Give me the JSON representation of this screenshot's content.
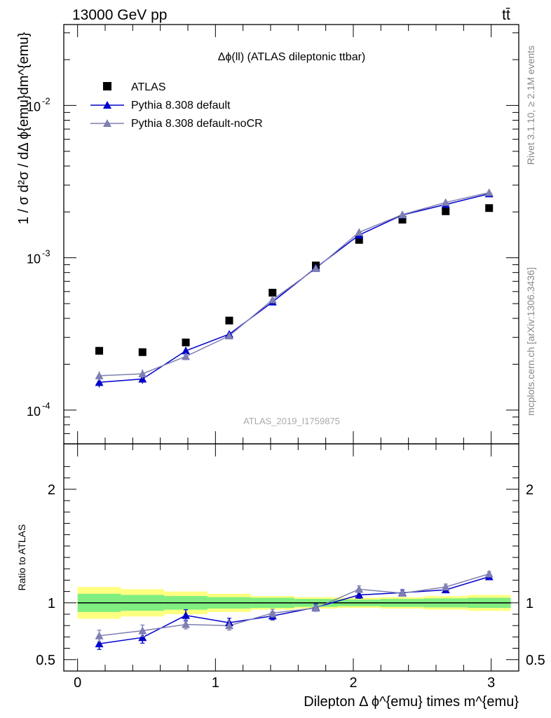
{
  "header": {
    "energy_label": "13000 GeV pp",
    "process_label": "tt̄"
  },
  "side_labels": {
    "rivet": "Rivet 3.1.10, ≥ 2.1M events",
    "source": "mcplots.cern.ch [arXiv:1306.3436]"
  },
  "colors": {
    "data": "#000000",
    "default": "#0000cc",
    "noCR": "#7f7fb2",
    "band_inner": "#80ee80",
    "band_outer": "#ffff80"
  },
  "chart_data": [
    {
      "type": "scatter",
      "title": "Δϕ(ll) (ATLAS dileptonic ttbar)",
      "analysis_label": "ATLAS_2019_I1759875",
      "ylabel": "1 / σ  d²σ / dΔ ϕ{emu}dm^{emu}",
      "yscale": "log",
      "ylim": [
        6e-05,
        0.034
      ],
      "xlim": [
        -0.1,
        3.2
      ],
      "y_tick_labels": [
        "10^-4",
        "10^-3",
        "10^-2"
      ],
      "legend_position": "top-left",
      "legend": [
        "ATLAS",
        "Pythia 8.308 default",
        "Pythia 8.308 default-noCR"
      ],
      "x": [
        0.157,
        0.471,
        0.785,
        1.1,
        1.414,
        1.728,
        2.042,
        2.356,
        2.67,
        2.985
      ],
      "series": [
        {
          "name": "ATLAS",
          "marker": "square",
          "values": [
            0.000245,
            0.00024,
            0.000278,
            0.000387,
            0.00059,
            0.00089,
            0.00131,
            0.00178,
            0.00202,
            0.00212
          ]
        },
        {
          "name": "Pythia 8.308 default",
          "marker": "triangle",
          "values": [
            0.000152,
            0.00016,
            0.000245,
            0.000315,
            0.000513,
            0.00086,
            0.00141,
            0.00191,
            0.00224,
            0.00263
          ],
          "err": [
            1.1e-05,
            1.1e-05,
            1.4e-05,
            1.6e-05,
            2e-05,
            2.5e-05,
            4e-05,
            5e-05,
            6e-05,
            7e-05
          ]
        },
        {
          "name": "Pythia 8.308 default-noCR",
          "marker": "triangle",
          "values": [
            0.000168,
            0.000173,
            0.000225,
            0.000307,
            0.00053,
            0.00085,
            0.00147,
            0.00192,
            0.00231,
            0.00268
          ],
          "err": [
            1.2e-05,
            1.2e-05,
            1.3e-05,
            1.6e-05,
            2e-05,
            2.5e-05,
            4e-05,
            5e-05,
            6e-05,
            7e-05
          ]
        }
      ]
    },
    {
      "type": "line",
      "xlabel": "Dilepton Δ ϕ^{emu} times m^{emu}",
      "ylabel": "Ratio to ATLAS",
      "ylim": [
        0.4,
        2.4
      ],
      "xlim": [
        -0.1,
        3.2
      ],
      "x_ticks": [
        0,
        1,
        2,
        3
      ],
      "y_ticks": [
        0.5,
        1,
        2
      ],
      "band_edges": [
        0.0,
        0.314,
        0.628,
        0.942,
        1.257,
        1.571,
        1.885,
        2.199,
        2.513,
        2.827,
        3.142
      ],
      "band_inner": [
        0.08,
        0.07,
        0.06,
        0.05,
        0.045,
        0.035,
        0.03,
        0.035,
        0.04,
        0.045
      ],
      "band_outer": [
        0.14,
        0.12,
        0.1,
        0.08,
        0.06,
        0.05,
        0.045,
        0.05,
        0.06,
        0.07
      ],
      "x": [
        0.157,
        0.471,
        0.785,
        1.1,
        1.414,
        1.728,
        2.042,
        2.356,
        2.67,
        2.985
      ],
      "series": [
        {
          "name": "Pythia 8.308 default",
          "values": [
            0.64,
            0.695,
            0.89,
            0.825,
            0.885,
            0.96,
            1.07,
            1.09,
            1.115,
            1.23
          ],
          "err": [
            0.05,
            0.05,
            0.05,
            0.04,
            0.035,
            0.03,
            0.03,
            0.025,
            0.025,
            0.02
          ]
        },
        {
          "name": "Pythia 8.308 default-noCR",
          "values": [
            0.71,
            0.755,
            0.81,
            0.8,
            0.91,
            0.955,
            1.12,
            1.085,
            1.14,
            1.255
          ],
          "err": [
            0.05,
            0.05,
            0.04,
            0.04,
            0.035,
            0.03,
            0.03,
            0.025,
            0.025,
            0.02
          ]
        }
      ]
    }
  ]
}
